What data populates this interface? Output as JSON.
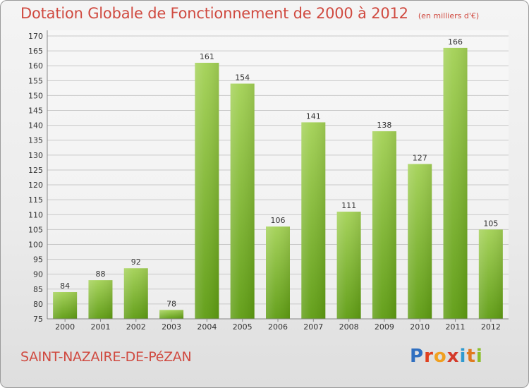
{
  "header": {
    "title": "Dotation Globale de Fonctionnement de 2000 à 2012",
    "unit_note": "(en milliers d'€)"
  },
  "footer": {
    "commune": "SAINT-NAZAIRE-DE-PéZAN",
    "brand_letters": [
      {
        "char": "P",
        "color": "#2f6fc0"
      },
      {
        "char": "r",
        "color": "#e0401f"
      },
      {
        "char": "o",
        "color": "#f0a020"
      },
      {
        "char": "x",
        "color": "#d43a2a"
      },
      {
        "char": "i",
        "color": "#2f9ad0"
      },
      {
        "char": "t",
        "color": "#e07a20"
      },
      {
        "char": "i",
        "color": "#8cbf2a"
      }
    ]
  },
  "colors": {
    "title": "#d04a40",
    "bar_light": "#a3d155",
    "bar_dark": "#5e9c12",
    "grid": "#c8c8c8",
    "axis": "#888888",
    "text": "#333333"
  },
  "chart_data": {
    "type": "bar",
    "categories": [
      "2000",
      "2001",
      "2002",
      "2003",
      "2004",
      "2005",
      "2006",
      "2007",
      "2008",
      "2009",
      "2010",
      "2011",
      "2012"
    ],
    "values": [
      84,
      88,
      92,
      78,
      161,
      154,
      106,
      141,
      111,
      138,
      127,
      166,
      105
    ],
    "data_labels": [
      "84",
      "88",
      "92",
      "78",
      "161",
      "154",
      "106",
      "141",
      "111",
      "138",
      "127",
      "166",
      "105"
    ],
    "ylim": [
      75,
      170
    ],
    "yticks": [
      75,
      80,
      85,
      90,
      95,
      100,
      105,
      110,
      115,
      120,
      125,
      130,
      135,
      140,
      145,
      150,
      155,
      160,
      165,
      170
    ],
    "ytick_labels": [
      "75",
      "80",
      "85",
      "90",
      "95",
      "100",
      "105",
      "110",
      "115",
      "120",
      "125",
      "130",
      "135",
      "140",
      "145",
      "150",
      "155",
      "160",
      "165",
      "170"
    ],
    "xlabel": "",
    "ylabel": "",
    "grid": true,
    "legend": false
  }
}
